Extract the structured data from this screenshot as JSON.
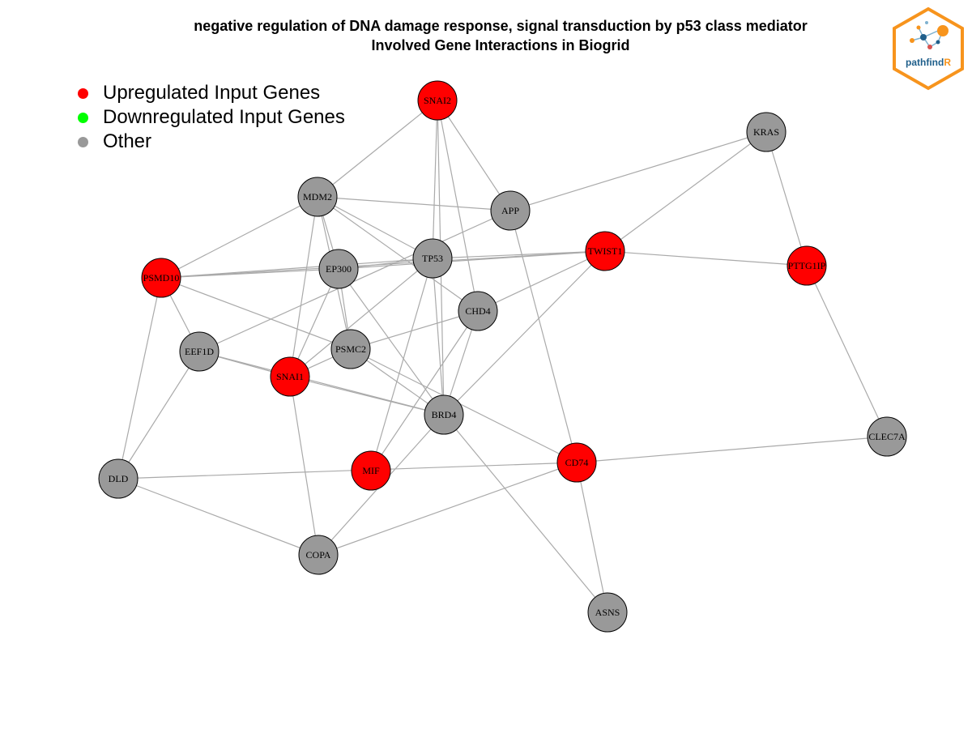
{
  "title": {
    "line1": "negative regulation of DNA damage response, signal transduction by p53 class mediator",
    "line2": "Involved Gene Interactions in Biogrid"
  },
  "legend": [
    {
      "label": "Upregulated Input Genes",
      "color": "#ff0000"
    },
    {
      "label": "Downregulated Input Genes",
      "color": "#00ff00"
    },
    {
      "label": "Other",
      "color": "#999999"
    }
  ],
  "logo": {
    "text_main": "pathfind",
    "text_accent": "R",
    "color_main": "#1f5f8b",
    "color_accent": "#f7941d"
  },
  "colors": {
    "up": "#ff0000",
    "other": "#999999",
    "edge": "#aaaaaa"
  },
  "nodes": [
    {
      "id": "SNAI2",
      "status": "up"
    },
    {
      "id": "KRAS",
      "status": "other"
    },
    {
      "id": "MDM2",
      "status": "other"
    },
    {
      "id": "APP",
      "status": "other"
    },
    {
      "id": "TP53",
      "status": "other"
    },
    {
      "id": "TWIST1",
      "status": "up"
    },
    {
      "id": "PTTG1IP",
      "status": "up"
    },
    {
      "id": "EP300",
      "status": "other"
    },
    {
      "id": "PSMD10",
      "status": "up"
    },
    {
      "id": "CHD4",
      "status": "other"
    },
    {
      "id": "EEF1D",
      "status": "other"
    },
    {
      "id": "PSMC2",
      "status": "other"
    },
    {
      "id": "SNAI1",
      "status": "up"
    },
    {
      "id": "BRD4",
      "status": "other"
    },
    {
      "id": "CLEC7A",
      "status": "other"
    },
    {
      "id": "DLD",
      "status": "other"
    },
    {
      "id": "MIF",
      "status": "up"
    },
    {
      "id": "CD74",
      "status": "up"
    },
    {
      "id": "COPA",
      "status": "other"
    },
    {
      "id": "ASNS",
      "status": "other"
    }
  ],
  "edges": [
    [
      "SNAI2",
      "MDM2"
    ],
    [
      "SNAI2",
      "APP"
    ],
    [
      "SNAI2",
      "TP53"
    ],
    [
      "SNAI2",
      "CHD4"
    ],
    [
      "SNAI2",
      "BRD4"
    ],
    [
      "KRAS",
      "APP"
    ],
    [
      "KRAS",
      "TWIST1"
    ],
    [
      "KRAS",
      "PTTG1IP"
    ],
    [
      "MDM2",
      "APP"
    ],
    [
      "MDM2",
      "TP53"
    ],
    [
      "MDM2",
      "EP300"
    ],
    [
      "MDM2",
      "PSMD10"
    ],
    [
      "MDM2",
      "PSMC2"
    ],
    [
      "MDM2",
      "SNAI1"
    ],
    [
      "MDM2",
      "CHD4"
    ],
    [
      "APP",
      "EEF1D"
    ],
    [
      "APP",
      "CD74"
    ],
    [
      "TP53",
      "PSMD10"
    ],
    [
      "TP53",
      "EP300"
    ],
    [
      "TP53",
      "TWIST1"
    ],
    [
      "TP53",
      "SNAI1"
    ],
    [
      "TP53",
      "BRD4"
    ],
    [
      "TP53",
      "MIF"
    ],
    [
      "TWIST1",
      "PSMD10"
    ],
    [
      "TWIST1",
      "EP300"
    ],
    [
      "TWIST1",
      "PTTG1IP"
    ],
    [
      "TWIST1",
      "CHD4"
    ],
    [
      "TWIST1",
      "BRD4"
    ],
    [
      "PTTG1IP",
      "CLEC7A"
    ],
    [
      "EP300",
      "PSMD10"
    ],
    [
      "EP300",
      "SNAI1"
    ],
    [
      "EP300",
      "PSMC2"
    ],
    [
      "EP300",
      "BRD4"
    ],
    [
      "PSMD10",
      "EEF1D"
    ],
    [
      "PSMD10",
      "PSMC2"
    ],
    [
      "PSMD10",
      "DLD"
    ],
    [
      "CHD4",
      "PSMC2"
    ],
    [
      "CHD4",
      "BRD4"
    ],
    [
      "CHD4",
      "MIF"
    ],
    [
      "EEF1D",
      "SNAI1"
    ],
    [
      "EEF1D",
      "BRD4"
    ],
    [
      "EEF1D",
      "DLD"
    ],
    [
      "PSMC2",
      "SNAI1"
    ],
    [
      "PSMC2",
      "BRD4"
    ],
    [
      "PSMC2",
      "CD74"
    ],
    [
      "SNAI1",
      "BRD4"
    ],
    [
      "SNAI1",
      "COPA"
    ],
    [
      "BRD4",
      "COPA"
    ],
    [
      "BRD4",
      "ASNS"
    ],
    [
      "CLEC7A",
      "CD74"
    ],
    [
      "DLD",
      "CD74"
    ],
    [
      "DLD",
      "COPA"
    ],
    [
      "CD74",
      "COPA"
    ],
    [
      "CD74",
      "ASNS"
    ]
  ]
}
